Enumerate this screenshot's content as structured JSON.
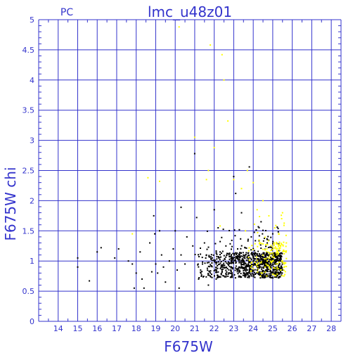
{
  "chart_data": {
    "type": "scatter",
    "title": "lmc_u48z01",
    "subtitle": "PC",
    "xlabel": "F675W",
    "ylabel": "F675W  chi",
    "xlim": [
      13,
      28.5
    ],
    "ylim": [
      0,
      5
    ],
    "xticks": [
      "14",
      "15",
      "16",
      "17",
      "18",
      "19",
      "20",
      "21",
      "22",
      "23",
      "24",
      "25",
      "26",
      "27",
      "28"
    ],
    "yticks": [
      "0",
      "0.5",
      "1",
      "1.5",
      "2",
      "2.5",
      "3",
      "3.5",
      "4",
      "4.5",
      "5"
    ],
    "grid": true,
    "colors": {
      "axis": "#3333cc",
      "grid": "#3333cc",
      "black": "#000000",
      "yellow": "#ffff00"
    },
    "series": [
      {
        "color": "black",
        "points": [
          [
            15.0,
            1.05
          ],
          [
            15.0,
            0.9
          ],
          [
            15.6,
            0.67
          ],
          [
            16.0,
            1.15
          ],
          [
            16.2,
            1.22
          ],
          [
            16.9,
            1.05
          ],
          [
            17.1,
            1.2
          ],
          [
            17.6,
            1.0
          ],
          [
            17.8,
            0.95
          ],
          [
            17.9,
            0.55
          ],
          [
            18.0,
            0.8
          ],
          [
            18.2,
            1.15
          ],
          [
            18.3,
            0.7
          ],
          [
            18.4,
            0.55
          ],
          [
            18.7,
            1.3
          ],
          [
            18.8,
            0.82
          ],
          [
            18.9,
            1.75
          ],
          [
            18.95,
            1.45
          ],
          [
            19.0,
            0.95
          ],
          [
            19.1,
            0.8
          ],
          [
            19.2,
            1.5
          ],
          [
            19.3,
            1.1
          ],
          [
            19.4,
            0.9
          ],
          [
            19.5,
            0.65
          ],
          [
            19.7,
            1.0
          ],
          [
            19.9,
            1.2
          ],
          [
            20.0,
            1.5
          ],
          [
            20.1,
            0.85
          ],
          [
            20.2,
            0.55
          ],
          [
            20.3,
            1.1
          ],
          [
            20.5,
            0.95
          ],
          [
            20.6,
            1.4
          ],
          [
            20.9,
            1.25
          ],
          [
            21.0,
            2.78
          ],
          [
            21.1,
            1.72
          ],
          [
            20.3,
            1.89
          ],
          [
            21.3,
            0.85
          ],
          [
            21.6,
            1.1
          ],
          [
            21.8,
            0.75
          ],
          [
            22.0,
            1.85
          ],
          [
            22.2,
            1.55
          ],
          [
            22.4,
            0.9
          ],
          [
            22.6,
            1.25
          ],
          [
            22.8,
            0.8
          ],
          [
            23.0,
            2.4
          ],
          [
            23.1,
            2.12
          ],
          [
            23.2,
            1.2
          ],
          [
            23.4,
            1.8
          ],
          [
            23.6,
            0.9
          ],
          [
            23.8,
            2.56
          ],
          [
            23.9,
            1.4
          ],
          [
            24.0,
            1.05
          ],
          [
            24.2,
            0.85
          ],
          [
            24.4,
            1.65
          ],
          [
            24.6,
            1.1
          ],
          [
            24.8,
            0.95
          ],
          [
            25.0,
            1.45
          ],
          [
            25.2,
            0.85
          ],
          [
            25.4,
            1.0
          ],
          [
            21.2,
            0.7
          ],
          [
            21.4,
            0.95
          ],
          [
            21.5,
            1.3
          ],
          [
            21.7,
            0.6
          ],
          [
            21.9,
            1.05
          ],
          [
            22.1,
            0.7
          ],
          [
            22.3,
            1.15
          ],
          [
            22.5,
            0.75
          ],
          [
            22.7,
            0.95
          ],
          [
            22.9,
            1.05
          ],
          [
            23.3,
            0.9
          ],
          [
            23.5,
            1.0
          ],
          [
            23.7,
            0.85
          ],
          [
            24.1,
            0.95
          ],
          [
            24.3,
            0.9
          ],
          [
            24.5,
            1.0
          ],
          [
            24.7,
            0.85
          ],
          [
            24.9,
            0.9
          ],
          [
            25.1,
            0.95
          ],
          [
            25.3,
            0.9
          ],
          [
            25.5,
            0.85
          ]
        ]
      },
      {
        "color": "yellow",
        "points": [
          [
            20.2,
            4.88
          ],
          [
            21.8,
            4.58
          ],
          [
            22.4,
            4.42
          ],
          [
            22.5,
            4.0
          ],
          [
            22.7,
            3.32
          ],
          [
            21.0,
            3.05
          ],
          [
            19.2,
            2.32
          ],
          [
            18.6,
            2.38
          ],
          [
            22.0,
            2.88
          ],
          [
            21.7,
            2.5
          ],
          [
            21.6,
            2.35
          ],
          [
            23.0,
            2.35
          ],
          [
            23.4,
            2.2
          ],
          [
            23.7,
            2.5
          ],
          [
            24.0,
            2.3
          ],
          [
            24.2,
            1.85
          ],
          [
            24.5,
            2.0
          ],
          [
            24.8,
            1.75
          ],
          [
            25.1,
            1.55
          ],
          [
            25.3,
            1.45
          ],
          [
            25.5,
            1.8
          ],
          [
            25.7,
            1.3
          ],
          [
            17.8,
            1.45
          ],
          [
            22.3,
            1.58
          ],
          [
            23.6,
            1.5
          ],
          [
            24.3,
            1.35
          ],
          [
            24.7,
            1.2
          ],
          [
            25.2,
            1.1
          ],
          [
            25.6,
            0.95
          ],
          [
            25.0,
            1.0
          ],
          [
            24.6,
            0.9
          ],
          [
            25.4,
            0.85
          ]
        ]
      }
    ]
  }
}
